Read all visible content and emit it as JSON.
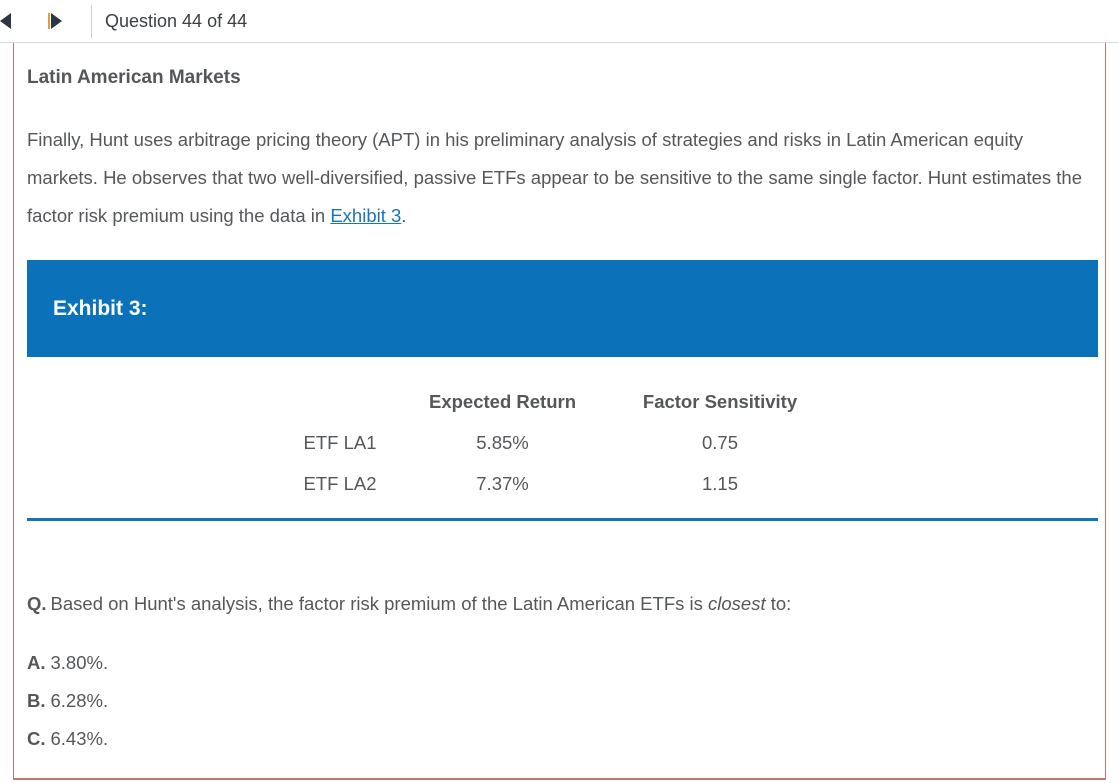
{
  "topbar": {
    "question_counter": "Question 44 of 44",
    "prev_icon": "left-triangle",
    "next_icon": "right-triangle"
  },
  "vignette": {
    "title": "Latin American Markets",
    "paragraph_before_link": "Finally, Hunt uses arbitrage pricing theory (APT) in his preliminary analysis of strategies and risks in Latin American equity markets. He observes that two well-diversified, passive ETFs appear to be sensitive to the same single factor. Hunt estimates the factor risk premium using the data in ",
    "link_text": "Exhibit 3",
    "paragraph_after_link": "."
  },
  "exhibit": {
    "banner_label": "Exhibit 3:",
    "table": {
      "columns": [
        "",
        "Expected Return",
        "Factor Sensitivity"
      ],
      "rows": [
        {
          "label": "ETF LA1",
          "expected_return": "5.85%",
          "factor_sensitivity": "0.75"
        },
        {
          "label": "ETF LA2",
          "expected_return": "7.37%",
          "factor_sensitivity": "1.15"
        }
      ]
    }
  },
  "question": {
    "prefix": "Q.",
    "text_before_emphasis": "Based on Hunt's analysis, the factor risk premium of the Latin American ETFs is ",
    "emphasis": "closest",
    "text_after_emphasis": " to:",
    "options": [
      {
        "letter": "A.",
        "text": "3.80%."
      },
      {
        "letter": "B.",
        "text": "6.28%."
      },
      {
        "letter": "C.",
        "text": "6.43%."
      }
    ]
  },
  "colors": {
    "banner_blue": "#0b72ba",
    "link_blue": "#1b74bb",
    "rule_blue": "#1573b7",
    "panel_border_salmon": "#c8736c",
    "body_text_gray": "#55585b",
    "topbar_border_gray": "#d8d8d8",
    "arrow_dark": "#2d3643",
    "arrow_accent_orange": "#e79b3b"
  }
}
